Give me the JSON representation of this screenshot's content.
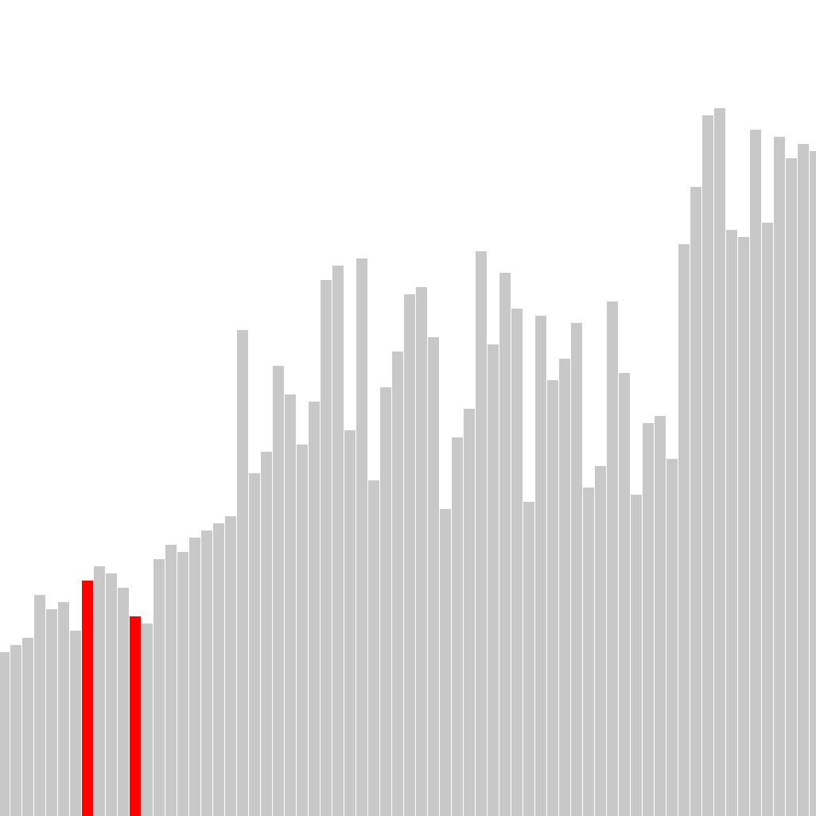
{
  "chart_data": {
    "type": "bar",
    "ylim": [
      0,
      1026
    ],
    "grid": false,
    "legend": "none",
    "colors": {
      "default": "#c8c8c8",
      "highlight": "#ff0000",
      "background": "#ffffff"
    },
    "highlighted_indices": [
      7,
      11
    ],
    "values": [
      206,
      215,
      224,
      278,
      260,
      269,
      233,
      296,
      314,
      305,
      287,
      251,
      242,
      323,
      341,
      332,
      350,
      359,
      368,
      377,
      611,
      431,
      458,
      566,
      530,
      467,
      521,
      674,
      692,
      485,
      701,
      422,
      539,
      584,
      656,
      665,
      602,
      386,
      476,
      512,
      710,
      593,
      683,
      638,
      395,
      629,
      548,
      575,
      620,
      413,
      440,
      647,
      557,
      404,
      494,
      503,
      449,
      719,
      791,
      881,
      890,
      737,
      728,
      863,
      746,
      854,
      827,
      845,
      836
    ]
  }
}
